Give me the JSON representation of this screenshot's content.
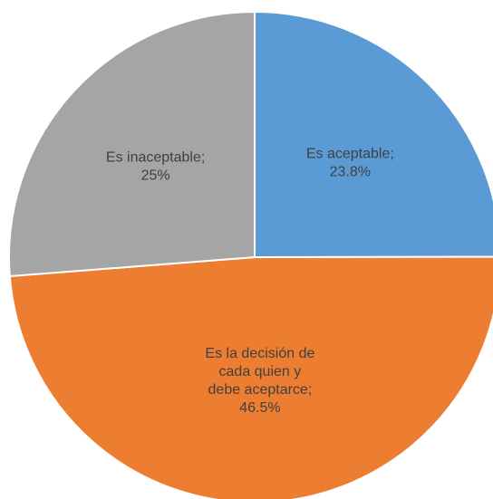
{
  "chart_data": {
    "type": "pie",
    "categories": [
      "Es aceptable;",
      "Es la decisión de\ncada quien y\ndebe aceptarce;",
      "Es inaceptable;"
    ],
    "values": [
      23.8,
      46.5,
      25
    ],
    "value_labels": [
      "23.8%",
      "46.5%",
      "25%"
    ],
    "colors": [
      "#5b9bd5",
      "#ed7d31",
      "#a5a5a5"
    ]
  }
}
